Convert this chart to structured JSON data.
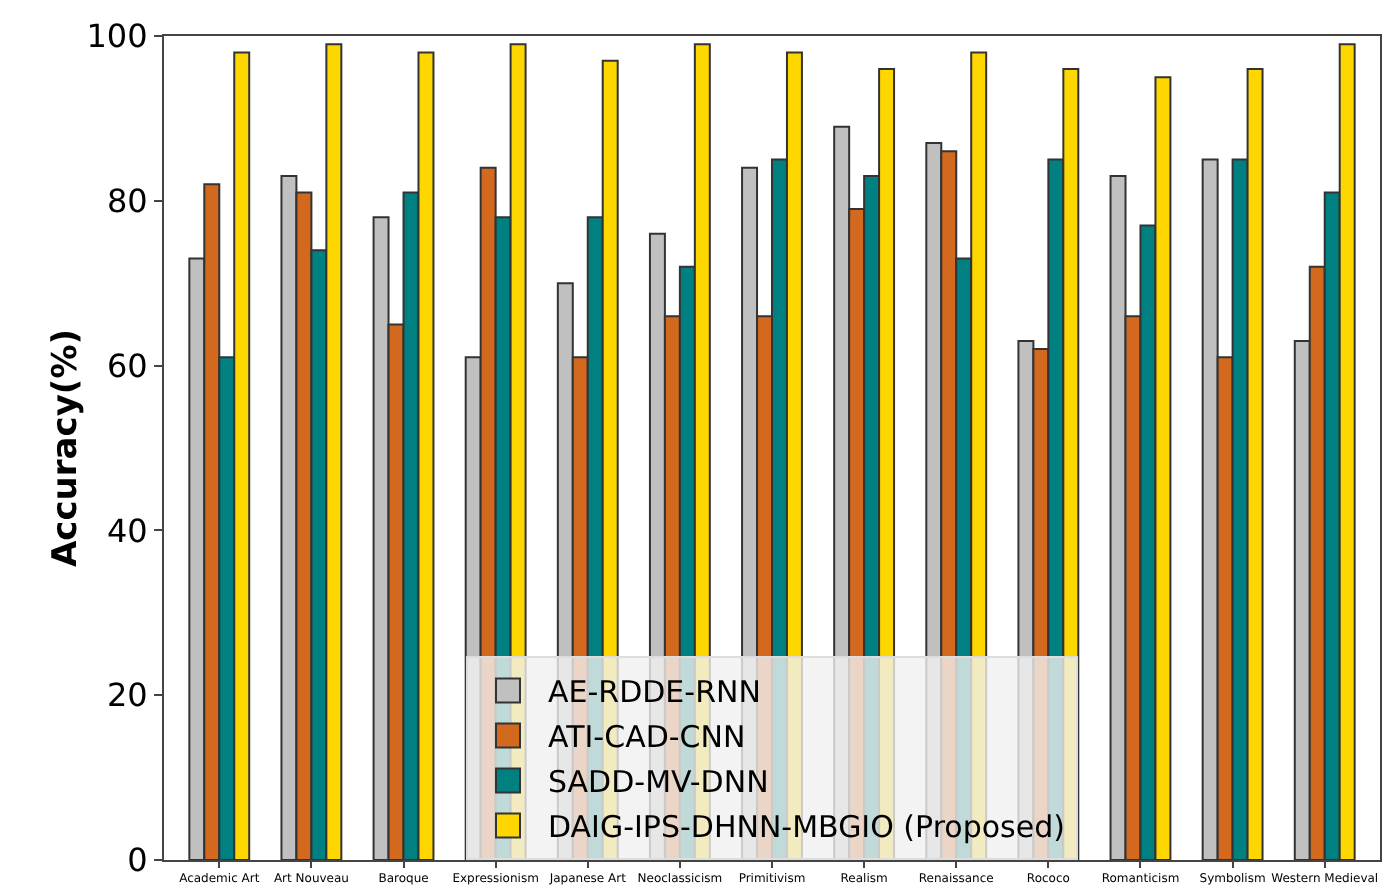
{
  "chart_data": {
    "type": "bar",
    "ylabel": "Accuracy(%)",
    "categories": [
      "Academic Art",
      "Art Nouveau",
      "Baroque",
      "Expressionism",
      "Japanese Art",
      "Neoclassicism",
      "Primitivism",
      "Realism",
      "Renaissance",
      "Rococo",
      "Romanticism",
      "Symbolism",
      "Western Medieval"
    ],
    "series": [
      {
        "name": "AE-RDDE-RNN",
        "color": "#c0c0c0",
        "values": [
          73,
          83,
          78,
          61,
          70,
          76,
          84,
          89,
          87,
          63,
          83,
          85,
          63
        ]
      },
      {
        "name": "ATI-CAD-CNN",
        "color": "#d2691e",
        "values": [
          82,
          81,
          65,
          84,
          61,
          66,
          66,
          79,
          86,
          62,
          66,
          61,
          72
        ]
      },
      {
        "name": "SADD-MV-DNN",
        "color": "#008080",
        "values": [
          61,
          74,
          81,
          78,
          78,
          72,
          85,
          83,
          73,
          85,
          77,
          85,
          81
        ]
      },
      {
        "name": "DAIG-IPS-DHNN-MBGIO (Proposed)",
        "color": "#ffd700",
        "values": [
          98,
          99,
          98,
          99,
          97,
          99,
          98,
          96,
          98,
          96,
          95,
          96,
          99
        ]
      }
    ],
    "ylim": [
      0,
      100
    ],
    "yticks": [
      0,
      20,
      40,
      60,
      80,
      100
    ],
    "grid": false,
    "legend": "bottom"
  }
}
